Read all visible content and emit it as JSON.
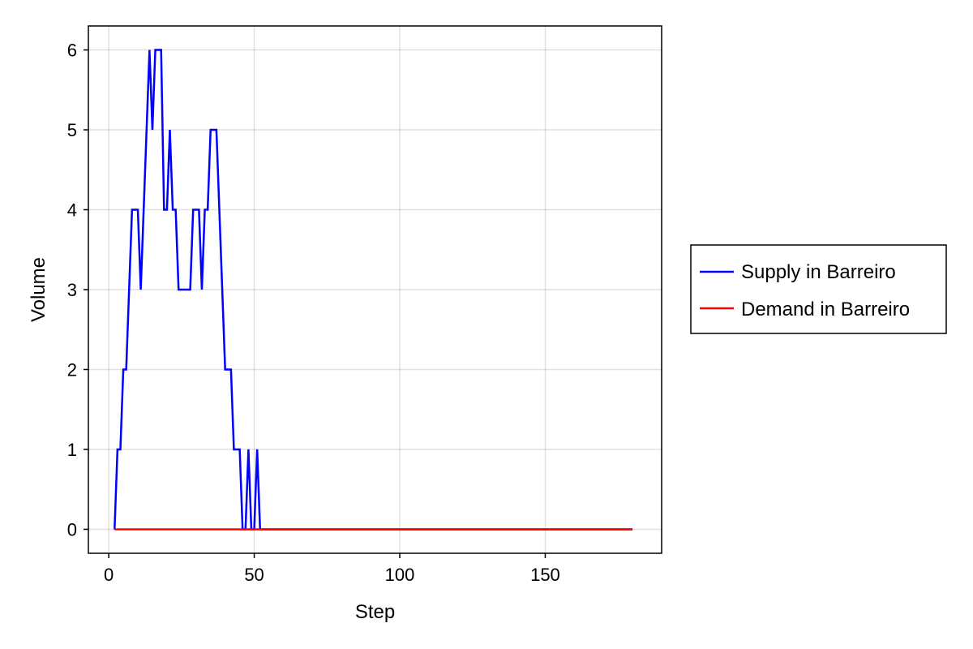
{
  "chart_data": {
    "type": "line",
    "title": "",
    "xlabel": "Step",
    "ylabel": "Volume",
    "xlim": [
      -7,
      190
    ],
    "ylim": [
      -0.3,
      6.3
    ],
    "xticks": [
      0,
      50,
      100,
      150
    ],
    "xtick_labels": [
      "0",
      "50",
      "100",
      "150"
    ],
    "yticks": [
      0,
      1,
      2,
      3,
      4,
      5,
      6
    ],
    "ytick_labels": [
      "0",
      "1",
      "2",
      "3",
      "4",
      "5",
      "6"
    ],
    "grid": true,
    "legend_position": "right",
    "series": [
      {
        "name": "Supply in Barreiro",
        "color": "#0000ff",
        "x": [
          2,
          3,
          4,
          5,
          6,
          7,
          8,
          9,
          10,
          11,
          12,
          13,
          14,
          15,
          16,
          17,
          18,
          19,
          20,
          21,
          22,
          23,
          24,
          25,
          26,
          27,
          28,
          29,
          30,
          31,
          32,
          33,
          34,
          35,
          36,
          37,
          38,
          39,
          40,
          41,
          42,
          43,
          44,
          45,
          46,
          47,
          48,
          49,
          50,
          51,
          52,
          180
        ],
        "y": [
          0,
          1,
          1,
          2,
          2,
          3,
          4,
          4,
          4,
          3,
          4,
          5,
          6,
          5,
          6,
          6,
          6,
          4,
          4,
          5,
          4,
          4,
          3,
          3,
          3,
          3,
          3,
          4,
          4,
          4,
          3,
          4,
          4,
          5,
          5,
          5,
          4,
          3,
          2,
          2,
          2,
          1,
          1,
          1,
          0,
          0,
          1,
          0,
          0,
          1,
          0,
          0
        ]
      },
      {
        "name": "Demand in Barreiro",
        "color": "#ff0000",
        "x": [
          2,
          180
        ],
        "y": [
          0,
          0
        ]
      }
    ]
  }
}
